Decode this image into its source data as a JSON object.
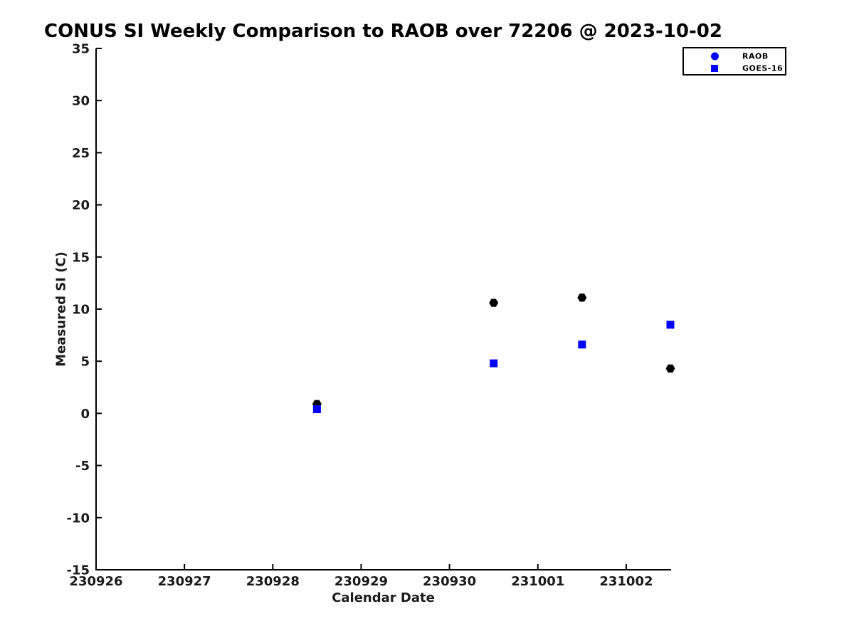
{
  "chart_data": {
    "type": "scatter",
    "title": "CONUS SI Weekly Comparison to RAOB over 72206 @ 2023-10-02",
    "xlabel": "Calendar Date",
    "ylabel": "Measured SI (C)",
    "x_tick_labels": [
      "230926",
      "230927",
      "230928",
      "230929",
      "230930",
      "231001",
      "231002"
    ],
    "xlim_days": [
      0,
      6.5
    ],
    "ylim": [
      -15,
      35
    ],
    "y_ticks": [
      35,
      30,
      25,
      20,
      15,
      10,
      5,
      0,
      -5,
      -10,
      -15
    ],
    "grid": false,
    "legend": {
      "position": "top-right-outside",
      "entries": [
        {
          "label": "RAOB",
          "marker": "circle",
          "color": "#0000ff"
        },
        {
          "label": "GOES-16",
          "marker": "square",
          "color": "#0000ff"
        }
      ]
    },
    "series": [
      {
        "name": "RAOB",
        "marker": "hexagon",
        "color": "#000000",
        "points": [
          {
            "x_date": 230928.5,
            "x_day": 2.5,
            "y": 0.9
          },
          {
            "x_date": 230930.5,
            "x_day": 4.5,
            "y": 10.6
          },
          {
            "x_date": 231001.5,
            "x_day": 5.5,
            "y": 11.1
          },
          {
            "x_date": 231002.5,
            "x_day": 6.5,
            "y": 4.3
          }
        ]
      },
      {
        "name": "GOES-16",
        "marker": "square",
        "color": "#0000ff",
        "points": [
          {
            "x_date": 230928.5,
            "x_day": 2.5,
            "y": 0.4
          },
          {
            "x_date": 230930.5,
            "x_day": 4.5,
            "y": 4.8
          },
          {
            "x_date": 231001.5,
            "x_day": 5.5,
            "y": 6.6
          },
          {
            "x_date": 231002.5,
            "x_day": 6.5,
            "y": 8.5
          }
        ]
      }
    ],
    "colors": {
      "raob": "#000000",
      "goes16": "#0000ff",
      "axis": "#000000",
      "background": "#ffffff"
    }
  }
}
